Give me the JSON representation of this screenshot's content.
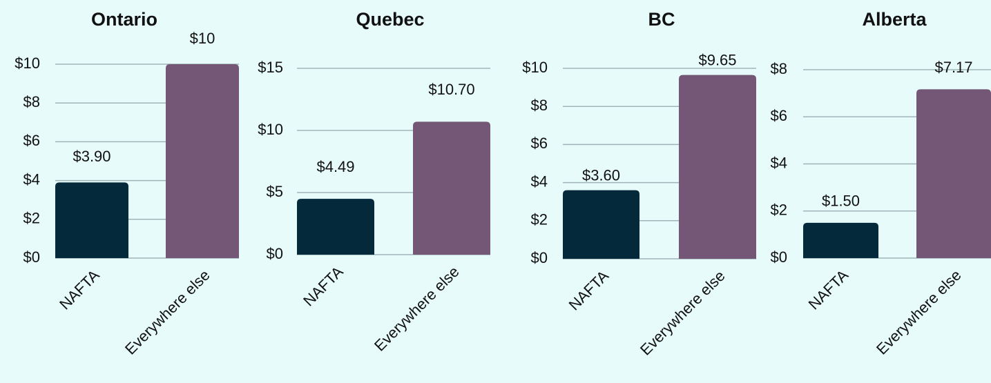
{
  "chart_data": [
    {
      "type": "bar",
      "title": "Ontario",
      "categories": [
        "NAFTA",
        "Everywhere else"
      ],
      "values": [
        3.9,
        10
      ],
      "value_labels": [
        "$3.90",
        "$10"
      ],
      "colors": [
        "#03293a",
        "#745776"
      ],
      "ylim": [
        0,
        10
      ],
      "yticks": [
        {
          "value": 0,
          "label": "$0"
        },
        {
          "value": 2,
          "label": "$2"
        },
        {
          "value": 4,
          "label": "$4"
        },
        {
          "value": 6,
          "label": "$6"
        },
        {
          "value": 8,
          "label": "$8"
        },
        {
          "value": 10,
          "label": "$10"
        }
      ],
      "grid": true
    },
    {
      "type": "bar",
      "title": "Quebec",
      "categories": [
        "NAFTA",
        "Everywhere else"
      ],
      "values": [
        4.49,
        10.7
      ],
      "value_labels": [
        "$4.49",
        "$10.70"
      ],
      "colors": [
        "#03293a",
        "#745776"
      ],
      "ylim": [
        0,
        15
      ],
      "yticks": [
        {
          "value": 0,
          "label": "$0"
        },
        {
          "value": 5,
          "label": "$5"
        },
        {
          "value": 10,
          "label": "$10"
        },
        {
          "value": 15,
          "label": "$15"
        }
      ],
      "grid": true
    },
    {
      "type": "bar",
      "title": "BC",
      "categories": [
        "NAFTA",
        "Everywhere else"
      ],
      "values": [
        3.6,
        9.65
      ],
      "value_labels": [
        "$3.60",
        "$9.65"
      ],
      "colors": [
        "#03293a",
        "#745776"
      ],
      "ylim": [
        0,
        10
      ],
      "yticks": [
        {
          "value": 0,
          "label": "$0"
        },
        {
          "value": 2,
          "label": "$2"
        },
        {
          "value": 4,
          "label": "$4"
        },
        {
          "value": 6,
          "label": "$6"
        },
        {
          "value": 8,
          "label": "$8"
        },
        {
          "value": 10,
          "label": "$10"
        }
      ],
      "grid": true
    },
    {
      "type": "bar",
      "title": "Alberta",
      "categories": [
        "NAFTA",
        "Everywhere else"
      ],
      "values": [
        1.5,
        7.17
      ],
      "value_labels": [
        "$1.50",
        "$7.17"
      ],
      "colors": [
        "#03293a",
        "#745776"
      ],
      "ylim": [
        0,
        8
      ],
      "yticks": [
        {
          "value": 0,
          "label": "$0"
        },
        {
          "value": 2,
          "label": "$2"
        },
        {
          "value": 4,
          "label": "$4"
        },
        {
          "value": 6,
          "label": "$6"
        },
        {
          "value": 8,
          "label": "$8"
        }
      ],
      "grid": true
    }
  ]
}
